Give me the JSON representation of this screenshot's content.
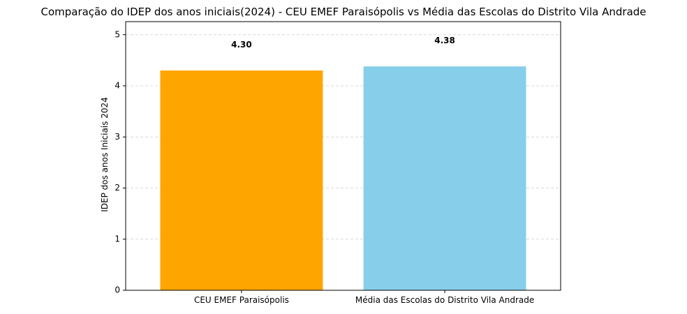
{
  "chart_data": {
    "type": "bar",
    "title": "Comparação do IDEP dos anos iniciais(2024) - CEU EMEF Paraisópolis vs Média das Escolas do Distrito Vila Andrade",
    "xlabel": "",
    "ylabel": "IDEP dos anos Iniciais 2024",
    "categories": [
      "CEU EMEF Paraisópolis",
      "Média das Escolas do Distrito Vila Andrade"
    ],
    "values": [
      4.3,
      4.38
    ],
    "value_labels": [
      "4.30",
      "4.38"
    ],
    "colors": [
      "#FFA500",
      "#87CEEB"
    ],
    "ylim": [
      0,
      5.256
    ],
    "yticks": [
      0,
      1,
      2,
      3,
      4,
      5
    ],
    "ytick_labels": [
      "0",
      "1",
      "2",
      "3",
      "4",
      "5"
    ],
    "grid": "y-dashed",
    "legend": "none"
  }
}
